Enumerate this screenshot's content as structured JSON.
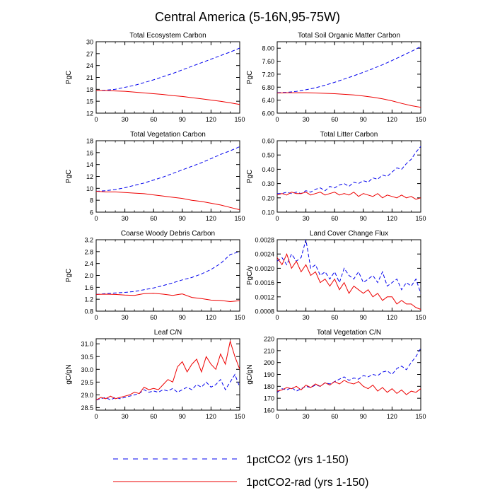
{
  "title": "Central America (5-16N,95-75W)",
  "colors": {
    "co2": "#0000ee",
    "rad": "#ee0000",
    "axis": "#000000"
  },
  "legend": {
    "items": [
      {
        "label": "1pctCO2 (yrs 1-150)",
        "style": "dashed",
        "color": "#0000ee"
      },
      {
        "label": "1pctCO2-rad (yrs 1-150)",
        "style": "solid",
        "color": "#ee0000"
      }
    ]
  },
  "chart_data": [
    {
      "type": "line",
      "title": "Total Ecosystem Carbon",
      "ylabel": "PgC",
      "xlim": [
        0,
        150
      ],
      "ylim": [
        12,
        30
      ],
      "xticks": [
        "0",
        "30",
        "60",
        "90",
        "120",
        "150"
      ],
      "yticks": [
        "12",
        "15",
        "18",
        "21",
        "24",
        "27",
        "30"
      ],
      "x": [
        0,
        10,
        20,
        30,
        40,
        50,
        60,
        70,
        80,
        90,
        100,
        110,
        120,
        130,
        140,
        150
      ],
      "series": [
        {
          "name": "1pctCO2 (yrs 1-150)",
          "values": [
            17.7,
            17.8,
            18.0,
            18.5,
            19.0,
            19.7,
            20.4,
            21.2,
            22.0,
            22.9,
            23.8,
            24.7,
            25.6,
            26.5,
            27.4,
            28.4
          ]
        },
        {
          "name": "1pctCO2-rad (yrs 1-150)",
          "values": [
            17.7,
            17.7,
            17.6,
            17.5,
            17.3,
            17.1,
            16.9,
            16.7,
            16.4,
            16.2,
            15.9,
            15.6,
            15.3,
            15.0,
            14.6,
            14.2
          ]
        }
      ]
    },
    {
      "type": "line",
      "title": "Total Soil Organic Matter Carbon",
      "ylabel": "PgC",
      "xlim": [
        0,
        150
      ],
      "ylim": [
        6.0,
        8.2
      ],
      "xticks": [
        "0",
        "30",
        "60",
        "90",
        "120",
        "150"
      ],
      "yticks": [
        "6.00",
        "6.40",
        "6.80",
        "7.20",
        "7.60",
        "8.00"
      ],
      "x": [
        0,
        10,
        20,
        30,
        40,
        50,
        60,
        70,
        80,
        90,
        100,
        110,
        120,
        130,
        140,
        150
      ],
      "series": [
        {
          "name": "1pctCO2 (yrs 1-150)",
          "values": [
            6.63,
            6.64,
            6.67,
            6.72,
            6.78,
            6.86,
            6.95,
            7.05,
            7.15,
            7.26,
            7.37,
            7.49,
            7.62,
            7.76,
            7.9,
            8.05
          ]
        },
        {
          "name": "1pctCO2-rad (yrs 1-150)",
          "values": [
            6.62,
            6.63,
            6.63,
            6.63,
            6.62,
            6.61,
            6.6,
            6.58,
            6.56,
            6.53,
            6.49,
            6.44,
            6.38,
            6.3,
            6.23,
            6.18
          ]
        }
      ]
    },
    {
      "type": "line",
      "title": "Total Vegetation Carbon",
      "ylabel": "PgC",
      "xlim": [
        0,
        150
      ],
      "ylim": [
        6,
        18
      ],
      "xticks": [
        "0",
        "30",
        "60",
        "90",
        "120",
        "150"
      ],
      "yticks": [
        "6",
        "8",
        "10",
        "12",
        "14",
        "16",
        "18"
      ],
      "x": [
        0,
        10,
        20,
        30,
        40,
        50,
        60,
        70,
        80,
        90,
        100,
        110,
        120,
        130,
        140,
        150
      ],
      "series": [
        {
          "name": "1pctCO2 (yrs 1-150)",
          "values": [
            9.5,
            9.6,
            9.8,
            10.1,
            10.5,
            10.9,
            11.4,
            11.9,
            12.5,
            13.1,
            13.7,
            14.3,
            15.0,
            15.7,
            16.3,
            17.0
          ]
        },
        {
          "name": "1pctCO2-rad (yrs 1-150)",
          "values": [
            9.5,
            9.4,
            9.4,
            9.3,
            9.2,
            9.1,
            8.9,
            8.7,
            8.5,
            8.3,
            8.0,
            7.8,
            7.5,
            7.2,
            6.8,
            6.4
          ]
        }
      ]
    },
    {
      "type": "line",
      "title": "Total Litter Carbon",
      "ylabel": "PgC",
      "xlim": [
        0,
        150
      ],
      "ylim": [
        0.1,
        0.6
      ],
      "xticks": [
        "0",
        "30",
        "60",
        "90",
        "120",
        "150"
      ],
      "yticks": [
        "0.10",
        "0.20",
        "0.30",
        "0.40",
        "0.50",
        "0.60"
      ],
      "x": [
        0,
        5,
        10,
        15,
        20,
        25,
        30,
        35,
        40,
        45,
        50,
        55,
        60,
        65,
        70,
        75,
        80,
        85,
        90,
        95,
        100,
        105,
        110,
        115,
        120,
        125,
        130,
        135,
        140,
        145,
        150
      ],
      "series": [
        {
          "name": "1pctCO2 (yrs 1-150)",
          "values": [
            0.23,
            0.23,
            0.24,
            0.23,
            0.24,
            0.23,
            0.25,
            0.24,
            0.26,
            0.27,
            0.25,
            0.28,
            0.27,
            0.29,
            0.3,
            0.28,
            0.31,
            0.3,
            0.32,
            0.31,
            0.34,
            0.33,
            0.36,
            0.35,
            0.38,
            0.41,
            0.4,
            0.44,
            0.47,
            0.52,
            0.56
          ]
        },
        {
          "name": "1pctCO2-rad (yrs 1-150)",
          "values": [
            0.22,
            0.23,
            0.22,
            0.24,
            0.23,
            0.23,
            0.24,
            0.22,
            0.23,
            0.24,
            0.22,
            0.23,
            0.24,
            0.22,
            0.23,
            0.22,
            0.24,
            0.21,
            0.23,
            0.22,
            0.21,
            0.23,
            0.2,
            0.22,
            0.21,
            0.2,
            0.22,
            0.2,
            0.21,
            0.19,
            0.2
          ]
        }
      ]
    },
    {
      "type": "line",
      "title": "Coarse Woody Debris Carbon",
      "ylabel": "PgC",
      "xlim": [
        0,
        150
      ],
      "ylim": [
        0.8,
        3.2
      ],
      "xticks": [
        "0",
        "30",
        "60",
        "90",
        "120",
        "150"
      ],
      "yticks": [
        "0.8",
        "1.2",
        "1.6",
        "2.0",
        "2.4",
        "2.8",
        "3.2"
      ],
      "x": [
        0,
        10,
        20,
        30,
        40,
        50,
        60,
        70,
        80,
        90,
        100,
        110,
        120,
        130,
        140,
        150
      ],
      "series": [
        {
          "name": "1pctCO2 (yrs 1-150)",
          "values": [
            1.36,
            1.39,
            1.41,
            1.43,
            1.46,
            1.52,
            1.58,
            1.66,
            1.75,
            1.85,
            1.93,
            2.05,
            2.2,
            2.4,
            2.7,
            2.8
          ]
        },
        {
          "name": "1pctCO2-rad (yrs 1-150)",
          "values": [
            1.36,
            1.37,
            1.36,
            1.34,
            1.33,
            1.39,
            1.4,
            1.37,
            1.33,
            1.38,
            1.26,
            1.22,
            1.17,
            1.16,
            1.12,
            1.15
          ]
        }
      ]
    },
    {
      "type": "line",
      "title": "Land Cover Change Flux",
      "ylabel": "PgC/y",
      "xlim": [
        0,
        150
      ],
      "ylim": [
        0.0008,
        0.0028
      ],
      "xticks": [
        "0",
        "30",
        "60",
        "90",
        "120",
        "150"
      ],
      "yticks": [
        "0.0008",
        "0.0012",
        "0.0016",
        "0.0020",
        "0.0024",
        "0.0028"
      ],
      "x": [
        0,
        5,
        10,
        15,
        20,
        25,
        30,
        35,
        40,
        45,
        50,
        55,
        60,
        65,
        70,
        75,
        80,
        85,
        90,
        95,
        100,
        105,
        110,
        115,
        120,
        125,
        130,
        135,
        140,
        145,
        150
      ],
      "series": [
        {
          "name": "1pctCO2 (yrs 1-150)",
          "values": [
            0.0022,
            0.0023,
            0.0021,
            0.0024,
            0.0022,
            0.0023,
            0.0028,
            0.002,
            0.0021,
            0.0018,
            0.0019,
            0.0017,
            0.0019,
            0.0016,
            0.002,
            0.0018,
            0.0017,
            0.0019,
            0.0016,
            0.0017,
            0.0018,
            0.0016,
            0.0019,
            0.0015,
            0.0016,
            0.0017,
            0.0014,
            0.0016,
            0.0015,
            0.0017,
            0.0013
          ]
        },
        {
          "name": "1pctCO2-rad (yrs 1-150)",
          "values": [
            0.0023,
            0.0021,
            0.0024,
            0.002,
            0.0022,
            0.0019,
            0.0021,
            0.0018,
            0.0019,
            0.0016,
            0.0017,
            0.0015,
            0.0017,
            0.0014,
            0.0016,
            0.0013,
            0.0015,
            0.0014,
            0.0013,
            0.0014,
            0.0012,
            0.0013,
            0.0011,
            0.0012,
            0.0012,
            0.001,
            0.0011,
            0.001,
            0.001,
            0.0009,
            0.00085
          ]
        }
      ]
    },
    {
      "type": "line",
      "title": "Leaf C/N",
      "ylabel": "gC/gN",
      "xlim": [
        0,
        150
      ],
      "ylim": [
        28.4,
        31.2
      ],
      "xticks": [
        "0",
        "30",
        "60",
        "90",
        "120",
        "150"
      ],
      "yticks": [
        "28.5",
        "29.0",
        "29.5",
        "30.0",
        "30.5",
        "31.0"
      ],
      "x": [
        0,
        5,
        10,
        15,
        20,
        25,
        30,
        35,
        40,
        45,
        50,
        55,
        60,
        65,
        70,
        75,
        80,
        85,
        90,
        95,
        100,
        105,
        110,
        115,
        120,
        125,
        130,
        135,
        140,
        145,
        150
      ],
      "series": [
        {
          "name": "1pctCO2 (yrs 1-150)",
          "values": [
            28.8,
            28.85,
            28.9,
            28.8,
            28.9,
            28.85,
            28.9,
            28.95,
            29.0,
            29.05,
            29.2,
            29.1,
            29.15,
            29.1,
            29.2,
            29.15,
            29.25,
            29.1,
            29.2,
            29.3,
            29.2,
            29.4,
            29.3,
            29.5,
            29.3,
            29.4,
            29.6,
            29.2,
            29.5,
            29.8,
            29.3
          ]
        },
        {
          "name": "1pctCO2-rad (yrs 1-150)",
          "values": [
            28.8,
            28.9,
            28.85,
            28.95,
            28.85,
            28.9,
            28.95,
            29.0,
            29.1,
            29.05,
            29.3,
            29.2,
            29.25,
            29.2,
            29.4,
            29.6,
            29.5,
            30.1,
            30.3,
            29.9,
            30.2,
            30.4,
            29.9,
            30.5,
            30.2,
            30.0,
            30.6,
            30.2,
            31.1,
            30.5,
            30.0
          ]
        }
      ]
    },
    {
      "type": "line",
      "title": "Total Vegetation C/N",
      "ylabel": "gC/gN",
      "xlim": [
        0,
        150
      ],
      "ylim": [
        160,
        220
      ],
      "xticks": [
        "0",
        "30",
        "60",
        "90",
        "120",
        "150"
      ],
      "yticks": [
        "160",
        "170",
        "180",
        "190",
        "200",
        "210",
        "220"
      ],
      "x": [
        0,
        5,
        10,
        15,
        20,
        25,
        30,
        35,
        40,
        45,
        50,
        55,
        60,
        65,
        70,
        75,
        80,
        85,
        90,
        95,
        100,
        105,
        110,
        115,
        120,
        125,
        130,
        135,
        140,
        145,
        150
      ],
      "series": [
        {
          "name": "1pctCO2 (yrs 1-150)",
          "values": [
            175,
            178,
            177,
            179,
            176,
            178,
            180,
            179,
            181,
            180,
            183,
            182,
            184,
            186,
            188,
            185,
            187,
            186,
            189,
            188,
            190,
            189,
            192,
            193,
            190,
            195,
            197,
            194,
            200,
            205,
            212
          ]
        },
        {
          "name": "1pctCO2-rad (yrs 1-150)",
          "values": [
            176,
            177,
            179,
            178,
            180,
            177,
            181,
            179,
            182,
            180,
            183,
            181,
            184,
            182,
            185,
            183,
            182,
            184,
            180,
            178,
            181,
            176,
            179,
            175,
            178,
            174,
            177,
            173,
            176,
            175,
            178
          ]
        }
      ]
    }
  ]
}
